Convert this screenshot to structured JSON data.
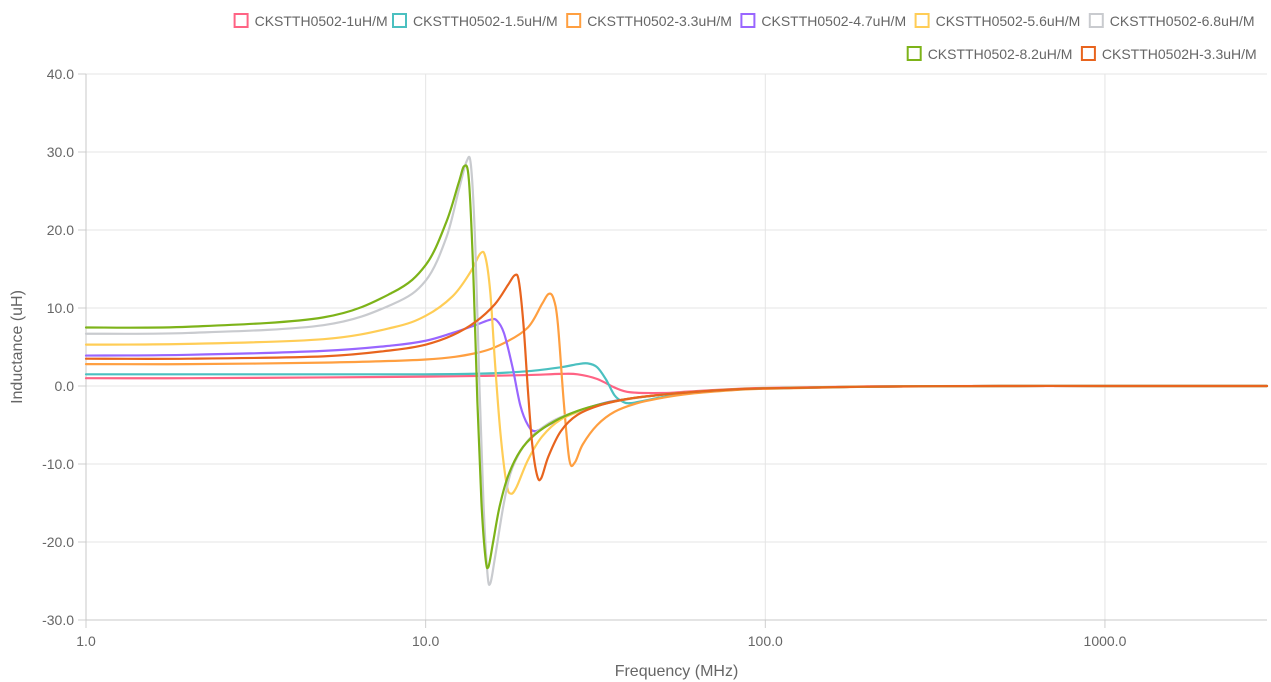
{
  "chart_data": {
    "type": "line",
    "title": "",
    "xlabel": "Frequency (MHz)",
    "ylabel": "Inductance (uH)",
    "x_scale": "log",
    "xlim": [
      1,
      3000
    ],
    "ylim": [
      -30,
      40
    ],
    "x_ticks": [
      1,
      10,
      100,
      1000
    ],
    "x_tick_labels": [
      "1.0",
      "10.0",
      "100.0",
      "1000.0"
    ],
    "y_ticks": [
      -30,
      -20,
      -10,
      0,
      10,
      20,
      30,
      40
    ],
    "y_tick_labels": [
      "-30.0",
      "-20.0",
      "-10.0",
      "0.0",
      "10.0",
      "20.0",
      "30.0",
      "40.0"
    ],
    "grid": true,
    "legend_position": "top-right",
    "series": [
      {
        "name": "CKSTTH0502-1uH/M",
        "color": "#ff6384",
        "points": [
          [
            1,
            1.0
          ],
          [
            2,
            1.0
          ],
          [
            5,
            1.1
          ],
          [
            10,
            1.2
          ],
          [
            15,
            1.3
          ],
          [
            20,
            1.4
          ],
          [
            25,
            1.55
          ],
          [
            28,
            1.5
          ],
          [
            32,
            0.9
          ],
          [
            36,
            -0.2
          ],
          [
            40,
            -0.8
          ],
          [
            50,
            -0.9
          ],
          [
            60,
            -0.7
          ],
          [
            80,
            -0.4
          ],
          [
            100,
            -0.25
          ],
          [
            200,
            -0.05
          ],
          [
            500,
            0.0
          ],
          [
            1000,
            0.0
          ],
          [
            3000,
            0.0
          ]
        ]
      },
      {
        "name": "CKSTTH0502-1.5uH/M",
        "color": "#4bc0c0",
        "points": [
          [
            1,
            1.5
          ],
          [
            2,
            1.5
          ],
          [
            5,
            1.5
          ],
          [
            10,
            1.5
          ],
          [
            15,
            1.6
          ],
          [
            20,
            1.9
          ],
          [
            25,
            2.4
          ],
          [
            28,
            2.8
          ],
          [
            30,
            2.9
          ],
          [
            32,
            2.4
          ],
          [
            34,
            0.8
          ],
          [
            36,
            -1.2
          ],
          [
            38,
            -2.0
          ],
          [
            40,
            -2.2
          ],
          [
            45,
            -1.8
          ],
          [
            50,
            -1.4
          ],
          [
            60,
            -0.9
          ],
          [
            80,
            -0.5
          ],
          [
            100,
            -0.3
          ],
          [
            200,
            -0.08
          ],
          [
            500,
            0.0
          ],
          [
            1000,
            0.0
          ],
          [
            3000,
            0.0
          ]
        ]
      },
      {
        "name": "CKSTTH0502-3.3uH/M",
        "color": "#ff9f40",
        "points": [
          [
            1,
            2.8
          ],
          [
            2,
            2.8
          ],
          [
            5,
            3.0
          ],
          [
            10,
            3.4
          ],
          [
            14,
            4.2
          ],
          [
            17,
            5.5
          ],
          [
            20,
            7.5
          ],
          [
            22,
            10.5
          ],
          [
            23,
            11.8
          ],
          [
            23.8,
            11.2
          ],
          [
            24.5,
            8.0
          ],
          [
            25.5,
            -2.0
          ],
          [
            26.5,
            -9.5
          ],
          [
            27.5,
            -9.8
          ],
          [
            29,
            -7.5
          ],
          [
            32,
            -5.0
          ],
          [
            36,
            -3.3
          ],
          [
            42,
            -2.2
          ],
          [
            50,
            -1.5
          ],
          [
            60,
            -1.0
          ],
          [
            80,
            -0.55
          ],
          [
            100,
            -0.35
          ],
          [
            200,
            -0.1
          ],
          [
            500,
            0.0
          ],
          [
            1000,
            0.0
          ],
          [
            3000,
            0.0
          ]
        ]
      },
      {
        "name": "CKSTTH0502-4.7uH/M",
        "color": "#9966ff",
        "points": [
          [
            1,
            3.9
          ],
          [
            2,
            4.0
          ],
          [
            5,
            4.5
          ],
          [
            8,
            5.2
          ],
          [
            10,
            5.8
          ],
          [
            12,
            6.8
          ],
          [
            14,
            7.8
          ],
          [
            15.5,
            8.5
          ],
          [
            16.2,
            8.4
          ],
          [
            17,
            6.8
          ],
          [
            18,
            2.5
          ],
          [
            19,
            -2.5
          ],
          [
            20,
            -5.0
          ],
          [
            21,
            -5.8
          ],
          [
            23,
            -5.0
          ],
          [
            26,
            -3.8
          ],
          [
            30,
            -2.8
          ],
          [
            35,
            -2.0
          ],
          [
            42,
            -1.5
          ],
          [
            50,
            -1.1
          ],
          [
            60,
            -0.8
          ],
          [
            80,
            -0.45
          ],
          [
            100,
            -0.3
          ],
          [
            200,
            -0.08
          ],
          [
            500,
            0.0
          ],
          [
            1000,
            0.0
          ],
          [
            3000,
            0.0
          ]
        ]
      },
      {
        "name": "CKSTTH0502-5.6uH/M",
        "color": "#ffcd56",
        "points": [
          [
            1,
            5.3
          ],
          [
            2,
            5.4
          ],
          [
            5,
            6.0
          ],
          [
            8,
            7.5
          ],
          [
            10,
            9.0
          ],
          [
            12,
            11.5
          ],
          [
            13.5,
            14.5
          ],
          [
            14.5,
            17.0
          ],
          [
            15,
            16.5
          ],
          [
            15.5,
            12.0
          ],
          [
            16,
            3.0
          ],
          [
            16.6,
            -6.0
          ],
          [
            17.3,
            -12.5
          ],
          [
            17.8,
            -13.8
          ],
          [
            18.5,
            -13.0
          ],
          [
            20,
            -9.5
          ],
          [
            22,
            -6.5
          ],
          [
            25,
            -4.3
          ],
          [
            30,
            -2.9
          ],
          [
            35,
            -2.1
          ],
          [
            42,
            -1.5
          ],
          [
            50,
            -1.1
          ],
          [
            60,
            -0.8
          ],
          [
            80,
            -0.45
          ],
          [
            100,
            -0.3
          ],
          [
            200,
            -0.08
          ],
          [
            500,
            0.0
          ],
          [
            1000,
            0.0
          ],
          [
            3000,
            0.0
          ]
        ]
      },
      {
        "name": "CKSTTH0502-6.8uH/M",
        "color": "#c9cbcf",
        "points": [
          [
            1,
            6.7
          ],
          [
            2,
            6.8
          ],
          [
            5,
            7.8
          ],
          [
            8,
            10.5
          ],
          [
            10,
            13.5
          ],
          [
            11.5,
            19.0
          ],
          [
            12.5,
            25.0
          ],
          [
            13.2,
            28.8
          ],
          [
            13.6,
            28.2
          ],
          [
            14,
            18.0
          ],
          [
            14.4,
            0.0
          ],
          [
            14.8,
            -15.0
          ],
          [
            15.2,
            -24.0
          ],
          [
            15.5,
            -25.3
          ],
          [
            16,
            -22.0
          ],
          [
            17,
            -15.0
          ],
          [
            18,
            -10.5
          ],
          [
            20,
            -7.0
          ],
          [
            23,
            -4.8
          ],
          [
            26,
            -3.7
          ],
          [
            30,
            -2.9
          ],
          [
            35,
            -2.1
          ],
          [
            42,
            -1.5
          ],
          [
            50,
            -1.1
          ],
          [
            60,
            -0.8
          ],
          [
            80,
            -0.45
          ],
          [
            100,
            -0.3
          ],
          [
            200,
            -0.08
          ],
          [
            500,
            0.0
          ],
          [
            1000,
            0.0
          ],
          [
            3000,
            0.0
          ]
        ]
      },
      {
        "name": "CKSTTH0502-8.2uH/M",
        "color": "#7db319",
        "points": [
          [
            1,
            7.5
          ],
          [
            2,
            7.6
          ],
          [
            5,
            8.8
          ],
          [
            8,
            12.0
          ],
          [
            10,
            15.5
          ],
          [
            11.5,
            21.0
          ],
          [
            12.5,
            26.0
          ],
          [
            13,
            28.2
          ],
          [
            13.4,
            26.5
          ],
          [
            13.8,
            15.0
          ],
          [
            14.2,
            -2.0
          ],
          [
            14.6,
            -15.0
          ],
          [
            15,
            -22.0
          ],
          [
            15.3,
            -23.2
          ],
          [
            15.8,
            -20.0
          ],
          [
            16.5,
            -15.5
          ],
          [
            17.5,
            -11.5
          ],
          [
            19,
            -8.3
          ],
          [
            21,
            -6.2
          ],
          [
            24,
            -4.5
          ],
          [
            28,
            -3.2
          ],
          [
            33,
            -2.3
          ],
          [
            40,
            -1.6
          ],
          [
            50,
            -1.1
          ],
          [
            60,
            -0.8
          ],
          [
            80,
            -0.45
          ],
          [
            100,
            -0.3
          ],
          [
            200,
            -0.08
          ],
          [
            500,
            0.0
          ],
          [
            1000,
            0.0
          ],
          [
            3000,
            0.0
          ]
        ]
      },
      {
        "name": "CKSTTH0502H-3.3uH/M",
        "color": "#e8641e",
        "points": [
          [
            1,
            3.5
          ],
          [
            2,
            3.5
          ],
          [
            5,
            3.8
          ],
          [
            8,
            4.6
          ],
          [
            10,
            5.3
          ],
          [
            12,
            6.5
          ],
          [
            14,
            8.2
          ],
          [
            16,
            10.5
          ],
          [
            17.5,
            13.0
          ],
          [
            18.3,
            14.2
          ],
          [
            18.8,
            13.5
          ],
          [
            19.4,
            8.0
          ],
          [
            20,
            -0.5
          ],
          [
            20.6,
            -7.5
          ],
          [
            21.3,
            -11.5
          ],
          [
            21.9,
            -11.8
          ],
          [
            23,
            -9.0
          ],
          [
            25,
            -5.8
          ],
          [
            28,
            -3.7
          ],
          [
            33,
            -2.4
          ],
          [
            40,
            -1.6
          ],
          [
            50,
            -1.1
          ],
          [
            60,
            -0.8
          ],
          [
            80,
            -0.45
          ],
          [
            100,
            -0.3
          ],
          [
            200,
            -0.08
          ],
          [
            500,
            0.0
          ],
          [
            1000,
            0.0
          ],
          [
            3000,
            0.0
          ]
        ]
      }
    ]
  }
}
